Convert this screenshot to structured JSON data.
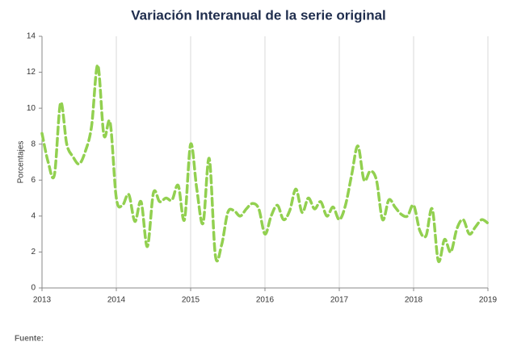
{
  "chart_data": {
    "type": "line",
    "title": "Variación Interanual de la serie original",
    "ylabel": "Porcentajes",
    "footer": "Fuente:",
    "x": [
      2013,
      2013.083,
      2013.167,
      2013.25,
      2013.333,
      2013.417,
      2013.5,
      2013.583,
      2013.667,
      2013.75,
      2013.833,
      2013.917,
      2014,
      2014.083,
      2014.167,
      2014.25,
      2014.333,
      2014.417,
      2014.5,
      2014.583,
      2014.667,
      2014.75,
      2014.833,
      2014.917,
      2015,
      2015.083,
      2015.167,
      2015.25,
      2015.333,
      2015.417,
      2015.5,
      2015.583,
      2015.667,
      2015.75,
      2015.833,
      2015.917,
      2016,
      2016.083,
      2016.167,
      2016.25,
      2016.333,
      2016.417,
      2016.5,
      2016.583,
      2016.667,
      2016.75,
      2016.833,
      2016.917,
      2017,
      2017.083,
      2017.167,
      2017.25,
      2017.333,
      2017.417,
      2017.5,
      2017.583,
      2017.667,
      2017.75,
      2017.833,
      2017.917,
      2018,
      2018.083,
      2018.167,
      2018.25,
      2018.333,
      2018.417,
      2018.5,
      2018.583,
      2018.667,
      2018.75,
      2018.833,
      2018.917,
      2019
    ],
    "series": [
      {
        "color": "#92d050",
        "values": [
          8.6,
          7.0,
          6.3,
          10.3,
          8.0,
          7.3,
          6.9,
          7.6,
          9.0,
          12.4,
          8.5,
          9.2,
          5.0,
          4.6,
          5.2,
          3.7,
          4.8,
          2.3,
          5.3,
          4.8,
          5.0,
          4.9,
          5.7,
          3.8,
          8.0,
          5.5,
          3.6,
          7.2,
          1.8,
          2.4,
          4.2,
          4.3,
          4.0,
          4.4,
          4.7,
          4.4,
          3.0,
          4.0,
          4.6,
          3.8,
          4.3,
          5.5,
          4.2,
          5.0,
          4.4,
          4.8,
          4.0,
          4.5,
          3.8,
          4.6,
          6.3,
          7.9,
          6.0,
          6.5,
          6.0,
          3.8,
          4.9,
          4.5,
          4.1,
          4.0,
          4.6,
          3.2,
          2.9,
          4.4,
          1.5,
          2.7,
          2.0,
          3.3,
          3.8,
          3.0,
          3.4,
          3.8,
          3.6
        ]
      }
    ],
    "xlim": [
      2013,
      2019
    ],
    "xticks": [
      2013,
      2014,
      2015,
      2016,
      2017,
      2018,
      2019
    ],
    "ylim": [
      0,
      14
    ],
    "yticks": [
      0,
      2,
      4,
      6,
      8,
      10,
      12,
      14
    ],
    "grid": "x"
  }
}
